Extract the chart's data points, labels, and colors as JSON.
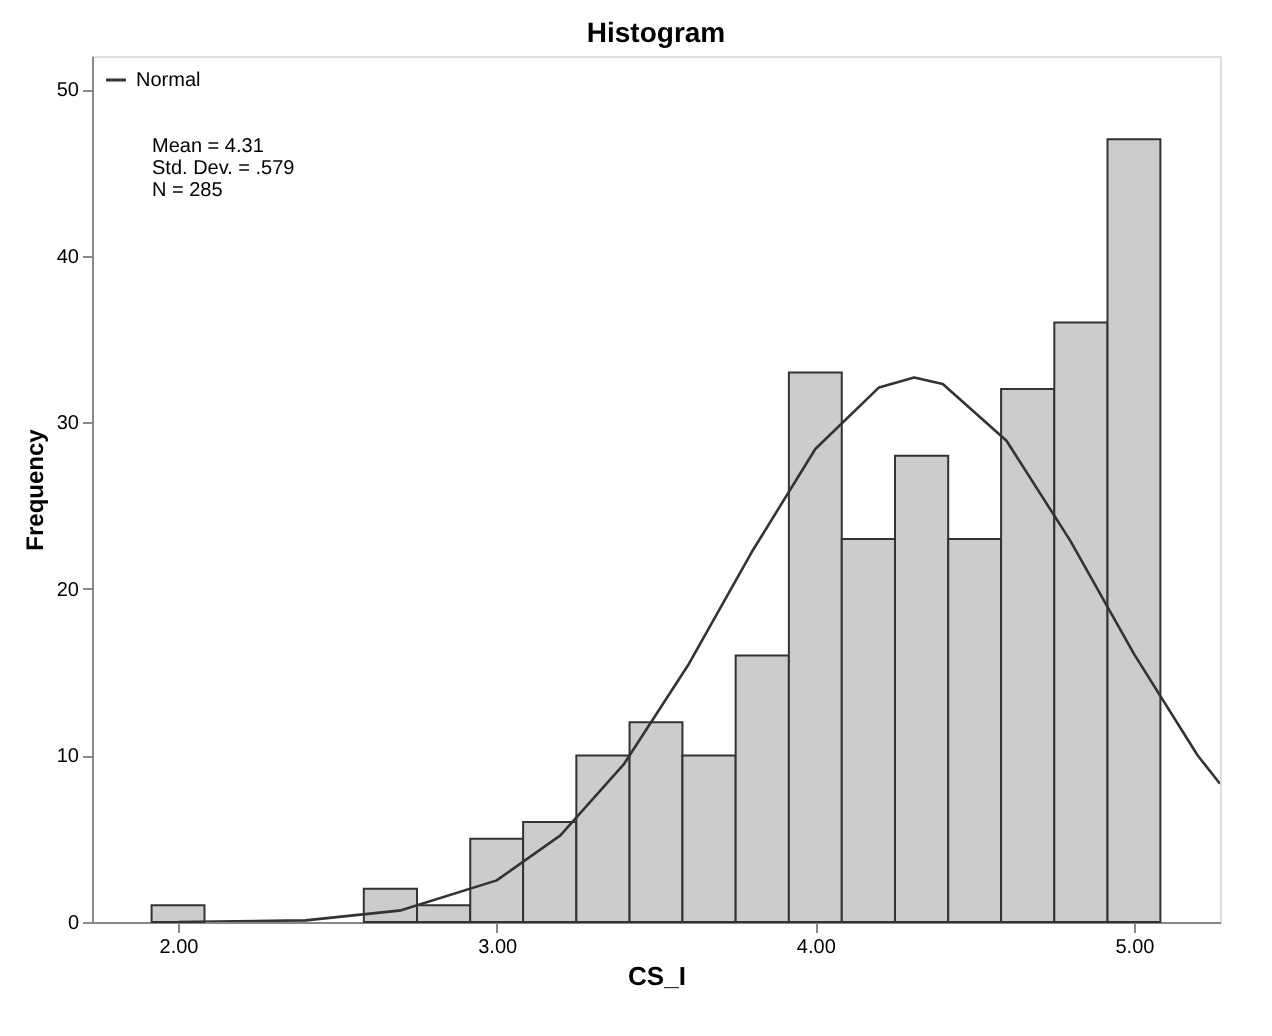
{
  "chart_data": {
    "type": "histogram",
    "title": "Histogram",
    "xlabel": "CS_I",
    "ylabel": "Frequency",
    "bins": [
      1.917,
      2.083,
      2.25,
      2.417,
      2.583,
      2.75,
      2.917,
      3.083,
      3.25,
      3.417,
      3.583,
      3.75,
      3.917,
      4.083,
      4.25,
      4.417,
      4.583,
      4.75,
      4.917,
      5.083
    ],
    "values": [
      1,
      0,
      0,
      0,
      2,
      1,
      5,
      6,
      10,
      12,
      10,
      16,
      33,
      23,
      28,
      23,
      32,
      36,
      47
    ],
    "color": "#cccccc",
    "series": [
      {
        "name": "Normal",
        "type": "line",
        "color": "#333333",
        "x": [
          2.0,
          2.4,
          2.7,
          3.0,
          3.2,
          3.4,
          3.6,
          3.8,
          4.0,
          4.2,
          4.31,
          4.4,
          4.6,
          4.8,
          5.0,
          5.2,
          5.27
        ],
        "values": [
          0,
          0.1,
          0.7,
          2.5,
          5.2,
          9.5,
          15.4,
          22.2,
          28.4,
          32.1,
          32.7,
          32.3,
          28.9,
          22.9,
          16.1,
          10.0,
          8.3
        ]
      }
    ],
    "xlim": [
      1.73,
      5.27
    ],
    "ylim": [
      0,
      52
    ],
    "xticks": [
      {
        "value": 2,
        "label": "2.00"
      },
      {
        "value": 3,
        "label": "3.00"
      },
      {
        "value": 4,
        "label": "4.00"
      },
      {
        "value": 5,
        "label": "5.00"
      }
    ],
    "yticks": [
      0,
      10,
      20,
      30,
      40,
      50
    ],
    "annotations": [
      "Mean = 4.31",
      "Std. Dev. = .579",
      "N = 285"
    ],
    "legend": "top left",
    "grid": false
  }
}
